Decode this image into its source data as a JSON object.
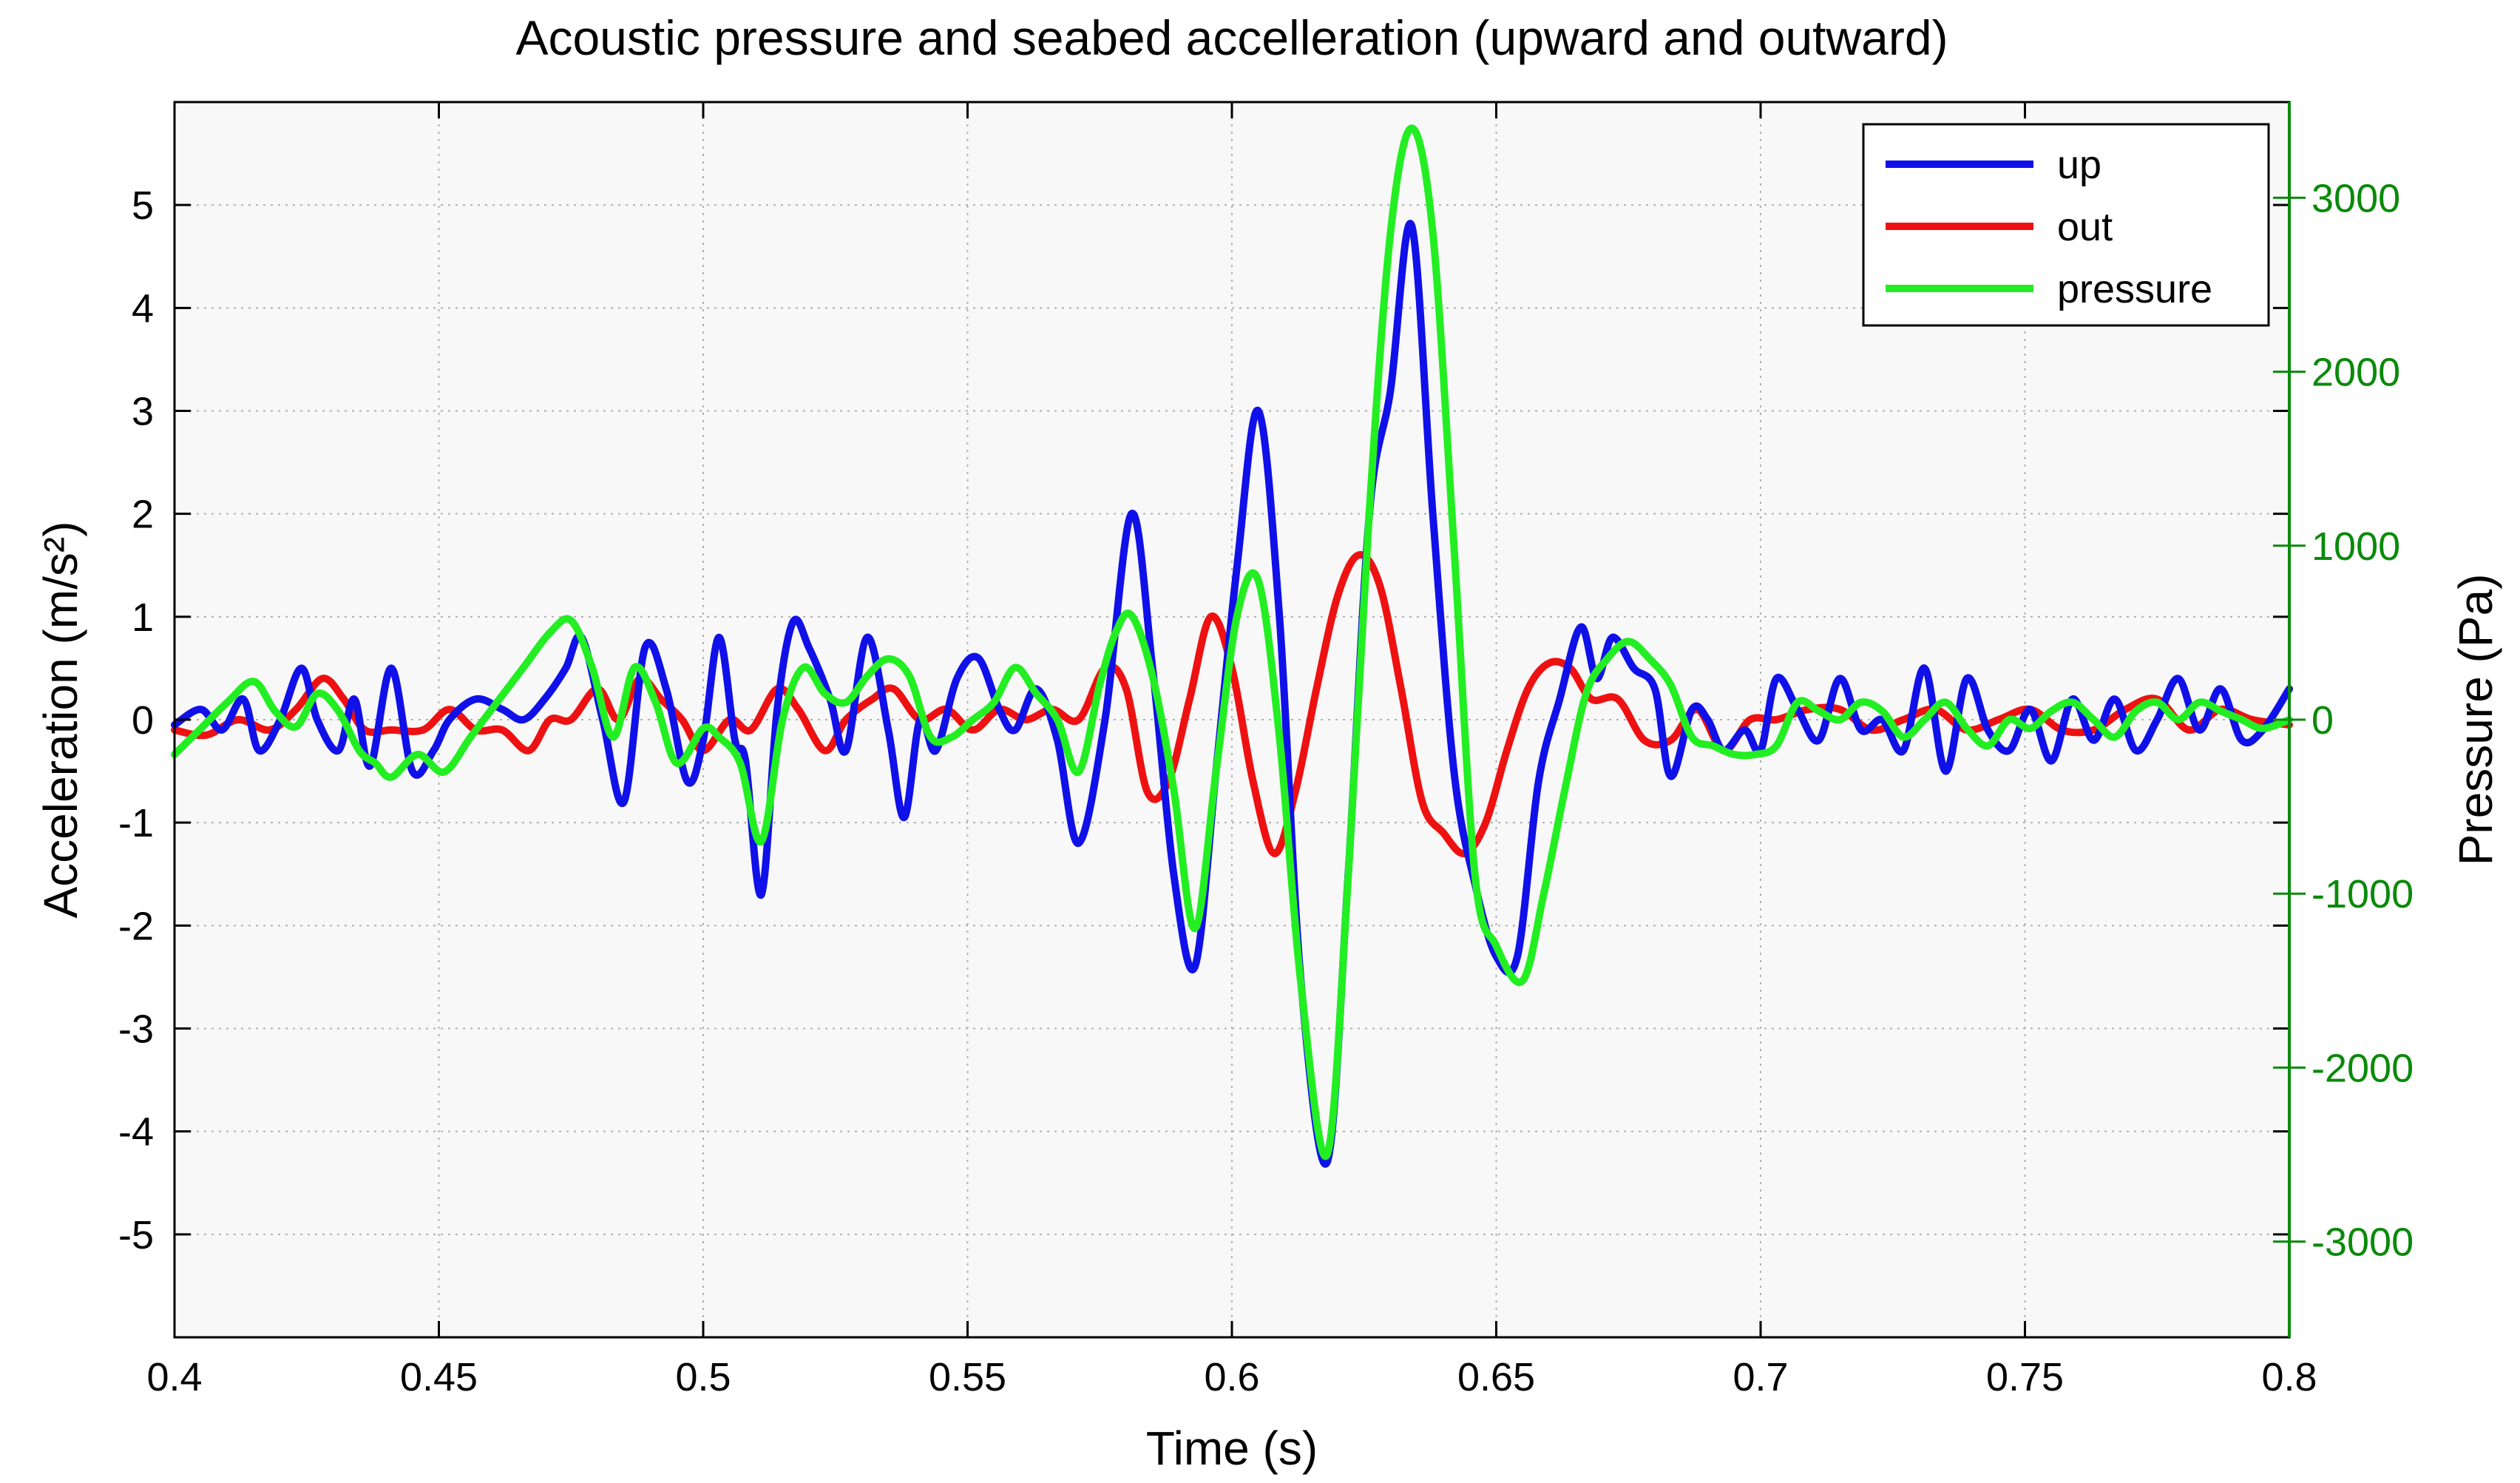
{
  "chart_data": {
    "type": "line",
    "title": "Acoustic pressure and seabed accelleration (upward and outward)",
    "xlabel": "Time (s)",
    "ylabel_left": "Acceleration (m/s²)",
    "ylabel_right": "Pressure (Pa)",
    "xlim": [
      0.4,
      0.8
    ],
    "ylim_left": [
      -6,
      6
    ],
    "ylim_right": [
      -3550,
      3550
    ],
    "x_ticks": [
      0.4,
      0.45,
      0.5,
      0.55,
      0.6,
      0.65,
      0.7,
      0.75,
      0.8
    ],
    "x_tick_labels": [
      "0.4",
      "0.45",
      "0.5",
      "0.55",
      "0.6",
      "0.65",
      "0.7",
      "0.75",
      "0.8"
    ],
    "y_left_ticks": [
      -5,
      -4,
      -3,
      -2,
      -1,
      0,
      1,
      2,
      3,
      4,
      5
    ],
    "y_left_tick_labels": [
      "-5",
      "-4",
      "-3",
      "-2",
      "-1",
      "0",
      "1",
      "2",
      "3",
      "4",
      "5"
    ],
    "y_right_ticks": [
      -3000,
      -2000,
      -1000,
      0,
      1000,
      2000,
      3000
    ],
    "y_right_tick_labels": [
      "-3000",
      "-2000",
      "-1000",
      "0",
      "1000",
      "2000",
      "3000"
    ],
    "grid": true,
    "legend_position": "top-right",
    "colors": {
      "up": "#1010e8",
      "out": "#ee1111",
      "pressure": "#22ee22",
      "right_axis": "#0a8a0a",
      "plot_bg": "#f8f8f8",
      "grid": "#b0b0b0"
    },
    "series": [
      {
        "name": "up",
        "axis": "left",
        "x": [
          0.4,
          0.405,
          0.409,
          0.413,
          0.416,
          0.42,
          0.424,
          0.427,
          0.431,
          0.434,
          0.437,
          0.441,
          0.445,
          0.449,
          0.452,
          0.457,
          0.462,
          0.466,
          0.47,
          0.474,
          0.477,
          0.481,
          0.485,
          0.489,
          0.493,
          0.497,
          0.5,
          0.503,
          0.506,
          0.508,
          0.511,
          0.514,
          0.517,
          0.52,
          0.524,
          0.527,
          0.531,
          0.535,
          0.538,
          0.541,
          0.544,
          0.548,
          0.552,
          0.556,
          0.559,
          0.563,
          0.567,
          0.571,
          0.576,
          0.581,
          0.585,
          0.589,
          0.593,
          0.597,
          0.601,
          0.605,
          0.609,
          0.613,
          0.618,
          0.622,
          0.626,
          0.63,
          0.634,
          0.638,
          0.642,
          0.646,
          0.65,
          0.654,
          0.658,
          0.662,
          0.666,
          0.669,
          0.672,
          0.676,
          0.68,
          0.683,
          0.687,
          0.69,
          0.693,
          0.697,
          0.7,
          0.703,
          0.707,
          0.711,
          0.715,
          0.719,
          0.723,
          0.727,
          0.731,
          0.735,
          0.739,
          0.743,
          0.747,
          0.751,
          0.755,
          0.759,
          0.763,
          0.767,
          0.771,
          0.775,
          0.779,
          0.783,
          0.787,
          0.791,
          0.795,
          0.8
        ],
        "values": [
          -0.05,
          0.1,
          -0.1,
          0.2,
          -0.3,
          0.0,
          0.5,
          0.0,
          -0.3,
          0.2,
          -0.45,
          0.5,
          -0.5,
          -0.3,
          0.0,
          0.2,
          0.1,
          0.0,
          0.2,
          0.5,
          0.8,
          0.0,
          -0.8,
          0.7,
          0.3,
          -0.6,
          -0.2,
          0.8,
          -0.2,
          -0.4,
          -1.7,
          0.1,
          0.95,
          0.7,
          0.2,
          -0.3,
          0.8,
          -0.1,
          -0.95,
          0.0,
          -0.3,
          0.4,
          0.6,
          0.1,
          -0.1,
          0.3,
          -0.2,
          -1.2,
          0.0,
          2.0,
          0.5,
          -1.5,
          -2.4,
          -0.5,
          1.5,
          3.0,
          1.0,
          -2.5,
          -4.3,
          -1.5,
          2.0,
          3.2,
          4.8,
          2.0,
          -0.5,
          -1.6,
          -2.3,
          -2.3,
          -0.6,
          0.2,
          0.9,
          0.4,
          0.8,
          0.5,
          0.3,
          -0.55,
          0.1,
          0.0,
          -0.3,
          -0.1,
          -0.3,
          0.4,
          0.1,
          -0.2,
          0.4,
          -0.1,
          0.0,
          -0.3,
          0.5,
          -0.5,
          0.4,
          -0.1,
          -0.3,
          0.1,
          -0.4,
          0.2,
          -0.2,
          0.2,
          -0.3,
          0.0,
          0.4,
          -0.1,
          0.3,
          -0.2,
          -0.1,
          0.3
        ]
      },
      {
        "name": "out",
        "axis": "left",
        "x": [
          0.4,
          0.406,
          0.412,
          0.418,
          0.423,
          0.428,
          0.432,
          0.436,
          0.441,
          0.447,
          0.452,
          0.457,
          0.462,
          0.467,
          0.471,
          0.475,
          0.48,
          0.484,
          0.488,
          0.492,
          0.496,
          0.5,
          0.505,
          0.509,
          0.514,
          0.518,
          0.523,
          0.527,
          0.532,
          0.536,
          0.541,
          0.546,
          0.551,
          0.556,
          0.561,
          0.566,
          0.571,
          0.576,
          0.58,
          0.584,
          0.588,
          0.592,
          0.596,
          0.6,
          0.604,
          0.608,
          0.612,
          0.616,
          0.62,
          0.624,
          0.628,
          0.632,
          0.636,
          0.64,
          0.644,
          0.648,
          0.652,
          0.656,
          0.66,
          0.664,
          0.668,
          0.673,
          0.678,
          0.683,
          0.688,
          0.693,
          0.698,
          0.703,
          0.709,
          0.715,
          0.721,
          0.727,
          0.733,
          0.739,
          0.745,
          0.751,
          0.757,
          0.763,
          0.769,
          0.775,
          0.781,
          0.787,
          0.793,
          0.8
        ],
        "values": [
          -0.1,
          -0.15,
          0.0,
          -0.1,
          0.1,
          0.4,
          0.2,
          -0.1,
          -0.1,
          -0.1,
          0.1,
          -0.1,
          -0.1,
          -0.3,
          0.0,
          0.0,
          0.3,
          0.0,
          0.4,
          0.2,
          0.0,
          -0.3,
          0.0,
          -0.1,
          0.3,
          0.1,
          -0.3,
          0.0,
          0.2,
          0.3,
          0.0,
          0.1,
          -0.1,
          0.1,
          0.0,
          0.1,
          0.0,
          0.5,
          0.3,
          -0.7,
          -0.6,
          0.2,
          1.0,
          0.5,
          -0.6,
          -1.3,
          -0.7,
          0.3,
          1.2,
          1.6,
          1.3,
          0.3,
          -0.8,
          -1.1,
          -1.3,
          -1.0,
          -0.3,
          0.3,
          0.55,
          0.5,
          0.2,
          0.2,
          -0.2,
          -0.2,
          0.1,
          -0.3,
          0.0,
          0.0,
          0.1,
          0.1,
          -0.1,
          0.0,
          0.1,
          -0.1,
          0.0,
          0.1,
          -0.1,
          -0.1,
          0.1,
          0.2,
          -0.1,
          0.1,
          0.0,
          -0.05
        ]
      },
      {
        "name": "pressure",
        "axis": "right",
        "x": [
          0.4,
          0.405,
          0.41,
          0.415,
          0.419,
          0.423,
          0.427,
          0.431,
          0.435,
          0.438,
          0.441,
          0.446,
          0.451,
          0.456,
          0.461,
          0.466,
          0.471,
          0.475,
          0.479,
          0.483,
          0.487,
          0.491,
          0.495,
          0.5,
          0.503,
          0.507,
          0.511,
          0.515,
          0.519,
          0.523,
          0.527,
          0.531,
          0.535,
          0.539,
          0.543,
          0.547,
          0.551,
          0.555,
          0.559,
          0.563,
          0.567,
          0.571,
          0.575,
          0.578,
          0.581,
          0.585,
          0.589,
          0.593,
          0.597,
          0.601,
          0.605,
          0.609,
          0.613,
          0.618,
          0.622,
          0.626,
          0.63,
          0.634,
          0.638,
          0.642,
          0.646,
          0.65,
          0.655,
          0.659,
          0.663,
          0.667,
          0.671,
          0.675,
          0.679,
          0.683,
          0.687,
          0.691,
          0.695,
          0.699,
          0.703,
          0.707,
          0.711,
          0.715,
          0.719,
          0.723,
          0.727,
          0.731,
          0.735,
          0.739,
          0.743,
          0.747,
          0.751,
          0.755,
          0.759,
          0.763,
          0.767,
          0.771,
          0.775,
          0.779,
          0.783,
          0.787,
          0.791,
          0.795,
          0.8
        ],
        "values": [
          -200,
          -50,
          100,
          220,
          50,
          -40,
          150,
          50,
          -180,
          -250,
          -330,
          -200,
          -300,
          -100,
          100,
          300,
          500,
          570,
          300,
          -100,
          300,
          100,
          -250,
          -50,
          -100,
          -250,
          -700,
          0,
          300,
          150,
          100,
          250,
          350,
          250,
          -100,
          -100,
          0,
          100,
          300,
          150,
          0,
          -300,
          200,
          500,
          600,
          250,
          -400,
          -1200,
          -300,
          600,
          800,
          -100,
          -1500,
          -2500,
          -900,
          1200,
          2800,
          3400,
          2800,
          1000,
          -900,
          -1300,
          -1500,
          -1000,
          -400,
          150,
          350,
          450,
          350,
          200,
          -100,
          -150,
          -200,
          -200,
          -150,
          100,
          50,
          0,
          100,
          50,
          -100,
          0,
          100,
          -50,
          -150,
          0,
          -50,
          50,
          100,
          0,
          -100,
          50,
          100,
          0,
          100,
          50,
          0,
          -50,
          0
        ]
      }
    ]
  }
}
